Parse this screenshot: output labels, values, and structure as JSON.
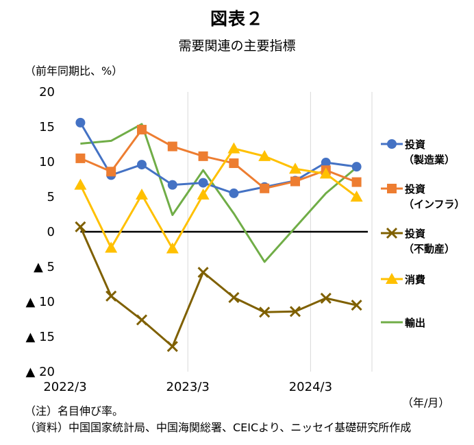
{
  "title": "図表２",
  "subtitle": "需要関連の主要指標",
  "y_unit": "（前年同期比、%）",
  "x_unit": "（年/月）",
  "notes": [
    "（注）名目伸び率。",
    "（資料）中国国家統計局、中国海関総署、CEICより、ニッセイ基礎研究所作成"
  ],
  "chart_data": {
    "type": "line",
    "ylim": [
      -20,
      20
    ],
    "y_ticks": [
      20,
      15,
      10,
      5,
      0,
      -5,
      -10,
      -15,
      -20
    ],
    "y_tick_labels": [
      "20",
      "15",
      "10",
      "5",
      "0",
      "▲ 5",
      "▲ 10",
      "▲ 15",
      "▲ 20"
    ],
    "x": [
      "2022/3",
      "2022/6",
      "2022/9",
      "2022/12",
      "2023/3",
      "2023/6",
      "2023/9",
      "2023/12",
      "2024/3",
      "2024/6"
    ],
    "x_tick_labels": [
      {
        "label": "2022/3",
        "index": 0
      },
      {
        "label": "2023/3",
        "index": 4
      },
      {
        "label": "2024/3",
        "index": 8
      }
    ],
    "grid": "vertical",
    "zero_line": true,
    "legend_position": "right",
    "series": [
      {
        "name": "投資（製造業）",
        "label_lines": [
          "投資",
          "（製造業）"
        ],
        "color": "#4472C4",
        "marker": "circle",
        "values": [
          15.6,
          8.1,
          9.6,
          6.7,
          7.0,
          5.5,
          6.4,
          7.3,
          9.9,
          9.3
        ]
      },
      {
        "name": "投資（インフラ）",
        "label_lines": [
          "投資",
          "（インフラ）"
        ],
        "color": "#ED7D31",
        "marker": "square",
        "values": [
          10.5,
          8.6,
          14.6,
          12.2,
          10.8,
          9.8,
          6.2,
          7.2,
          8.8,
          7.1
        ]
      },
      {
        "name": "投資（不動産）",
        "label_lines": [
          "投資",
          "（不動産）"
        ],
        "color": "#7F6000",
        "marker": "x",
        "values": [
          0.7,
          -9.2,
          -12.6,
          -16.4,
          -5.8,
          -9.4,
          -11.5,
          -11.4,
          -9.5,
          -10.5
        ]
      },
      {
        "name": "消費",
        "label_lines": [
          "消費"
        ],
        "color": "#FFC000",
        "marker": "triangle",
        "values": [
          6.7,
          -2.3,
          5.3,
          -2.4,
          5.3,
          11.9,
          10.8,
          9.0,
          8.3,
          5.0
        ]
      },
      {
        "name": "輸出",
        "label_lines": [
          "輸出"
        ],
        "color": "#70AD47",
        "marker": "none",
        "values": [
          12.6,
          13.0,
          15.4,
          2.4,
          8.8,
          2.6,
          -4.3,
          0.6,
          5.5,
          9.2
        ]
      }
    ]
  }
}
